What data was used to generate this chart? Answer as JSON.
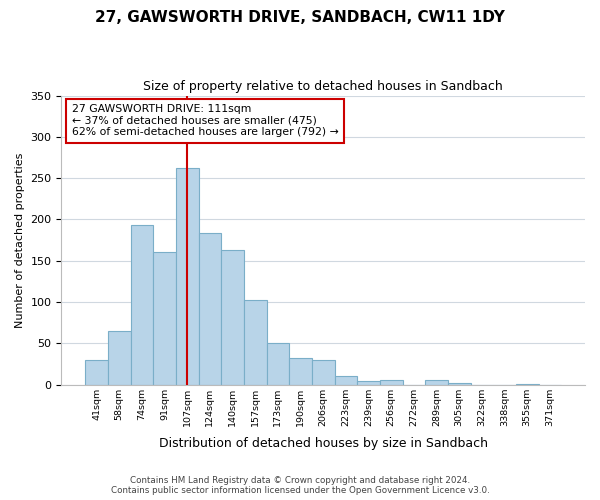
{
  "title1": "27, GAWSWORTH DRIVE, SANDBACH, CW11 1DY",
  "title2": "Size of property relative to detached houses in Sandbach",
  "xlabel": "Distribution of detached houses by size in Sandbach",
  "ylabel": "Number of detached properties",
  "bin_labels": [
    "41sqm",
    "58sqm",
    "74sqm",
    "91sqm",
    "107sqm",
    "124sqm",
    "140sqm",
    "157sqm",
    "173sqm",
    "190sqm",
    "206sqm",
    "223sqm",
    "239sqm",
    "256sqm",
    "272sqm",
    "289sqm",
    "305sqm",
    "322sqm",
    "338sqm",
    "355sqm",
    "371sqm"
  ],
  "bar_heights": [
    30,
    65,
    193,
    160,
    262,
    184,
    163,
    103,
    50,
    32,
    30,
    10,
    4,
    5,
    0,
    5,
    2,
    0,
    0,
    1,
    0
  ],
  "bar_color": "#b8d4e8",
  "bar_edge_color": "#7aaec8",
  "vline_x": 4,
  "vline_color": "#cc0000",
  "ylim": [
    0,
    350
  ],
  "yticks": [
    0,
    50,
    100,
    150,
    200,
    250,
    300,
    350
  ],
  "annotation_title": "27 GAWSWORTH DRIVE: 111sqm",
  "annotation_line1": "← 37% of detached houses are smaller (475)",
  "annotation_line2": "62% of semi-detached houses are larger (792) →",
  "footer1": "Contains HM Land Registry data © Crown copyright and database right 2024.",
  "footer2": "Contains public sector information licensed under the Open Government Licence v3.0.",
  "background_color": "#ffffff",
  "grid_color": "#d0d8e0"
}
